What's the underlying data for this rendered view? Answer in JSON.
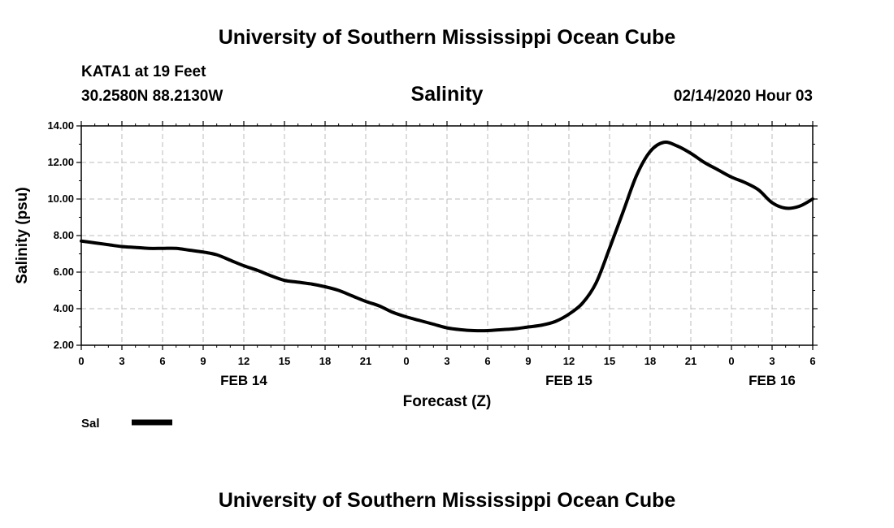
{
  "header": {
    "title_top": "University of Southern Mississippi Ocean Cube",
    "station": "KATA1 at 19 Feet",
    "coords": "30.2580N 88.2130W",
    "variable": "Salinity",
    "datetime": "02/14/2020 Hour 03",
    "title_bottom": "University of Southern Mississippi Ocean Cube"
  },
  "colors": {
    "line": "#000000",
    "grid": "#bbbbbb",
    "axis": "#000000"
  },
  "chart_data": {
    "type": "line",
    "title": "Salinity",
    "xlabel": "Forecast (Z)",
    "ylabel": "Salinity (psu)",
    "xlim": [
      0,
      54
    ],
    "ylim": [
      2,
      14
    ],
    "grid": true,
    "y_ticks": [
      "2.00",
      "4.00",
      "6.00",
      "8.00",
      "10.00",
      "12.00",
      "14.00"
    ],
    "x_tick_labels": [
      "0",
      "3",
      "6",
      "9",
      "12",
      "15",
      "18",
      "21",
      "0",
      "3",
      "6",
      "9",
      "12",
      "15",
      "18",
      "21",
      "0",
      "3",
      "6"
    ],
    "date_labels": [
      {
        "label": "FEB 14",
        "hour": 12
      },
      {
        "label": "FEB 15",
        "hour": 36
      },
      {
        "label": "FEB 16",
        "hour": 51
      }
    ],
    "legend": {
      "position": "bottom-left",
      "entries": [
        "Sal"
      ]
    },
    "series": [
      {
        "name": "Sal",
        "x": [
          0,
          1,
          2,
          3,
          4,
          5,
          6,
          7,
          8,
          9,
          10,
          11,
          12,
          13,
          14,
          15,
          16,
          17,
          18,
          19,
          20,
          21,
          22,
          23,
          24,
          25,
          26,
          27,
          28,
          29,
          30,
          31,
          32,
          33,
          34,
          35,
          36,
          37,
          38,
          39,
          40,
          41,
          42,
          43,
          44,
          45,
          46,
          47,
          48,
          49,
          50,
          51,
          52,
          53,
          54
        ],
        "y": [
          7.7,
          7.6,
          7.5,
          7.4,
          7.35,
          7.3,
          7.3,
          7.3,
          7.2,
          7.1,
          6.95,
          6.65,
          6.35,
          6.1,
          5.8,
          5.55,
          5.45,
          5.35,
          5.2,
          5.0,
          4.7,
          4.4,
          4.15,
          3.8,
          3.55,
          3.35,
          3.15,
          2.95,
          2.85,
          2.8,
          2.8,
          2.85,
          2.9,
          3.0,
          3.1,
          3.3,
          3.7,
          4.3,
          5.4,
          7.3,
          9.3,
          11.3,
          12.6,
          13.1,
          12.9,
          12.5,
          12.0,
          11.6,
          11.2,
          10.9,
          10.5,
          9.8,
          9.5,
          9.6,
          10.0
        ]
      }
    ]
  }
}
